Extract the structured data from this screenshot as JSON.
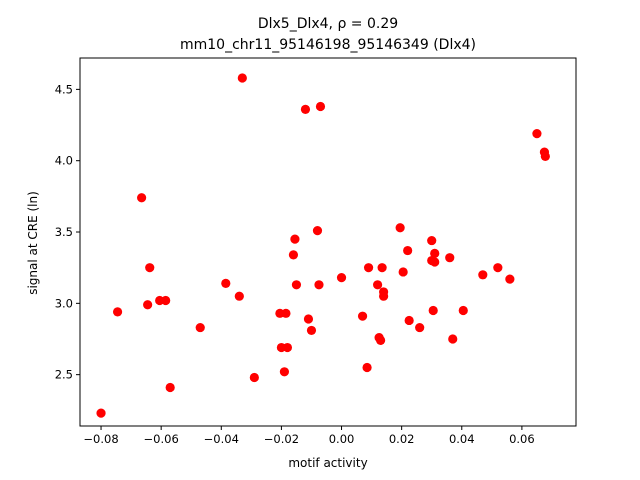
{
  "chart_data": {
    "type": "scatter",
    "title_line1": "Dlx5_Dlx4, ρ = 0.29",
    "title_line2": "mm10_chr11_95146198_95146349 (Dlx4)",
    "xlabel": "motif activity",
    "ylabel": "signal at CRE (ln)",
    "xlim": [
      -0.087,
      0.078
    ],
    "ylim": [
      2.14,
      4.72
    ],
    "xticks": [
      -0.08,
      -0.06,
      -0.04,
      -0.02,
      0.0,
      0.02,
      0.04,
      0.06
    ],
    "xtick_labels": [
      "−0.08",
      "−0.06",
      "−0.04",
      "−0.02",
      "0.00",
      "0.02",
      "0.04",
      "0.06"
    ],
    "yticks": [
      2.5,
      3.0,
      3.5,
      4.0,
      4.5
    ],
    "ytick_labels": [
      "2.5",
      "3.0",
      "3.5",
      "4.0",
      "4.5"
    ],
    "grid": false,
    "marker_color": "#ff0000",
    "points": [
      {
        "x": -0.08,
        "y": 2.23
      },
      {
        "x": -0.0745,
        "y": 2.94
      },
      {
        "x": -0.0665,
        "y": 3.74
      },
      {
        "x": -0.0645,
        "y": 2.99
      },
      {
        "x": -0.0638,
        "y": 3.25
      },
      {
        "x": -0.0605,
        "y": 3.02
      },
      {
        "x": -0.0585,
        "y": 3.02
      },
      {
        "x": -0.057,
        "y": 2.41
      },
      {
        "x": -0.047,
        "y": 2.83
      },
      {
        "x": -0.0385,
        "y": 3.14
      },
      {
        "x": -0.034,
        "y": 3.05
      },
      {
        "x": -0.033,
        "y": 4.58
      },
      {
        "x": -0.029,
        "y": 2.48
      },
      {
        "x": -0.0205,
        "y": 2.93
      },
      {
        "x": -0.02,
        "y": 2.69
      },
      {
        "x": -0.019,
        "y": 2.52
      },
      {
        "x": -0.0185,
        "y": 2.93
      },
      {
        "x": -0.018,
        "y": 2.69
      },
      {
        "x": -0.016,
        "y": 3.34
      },
      {
        "x": -0.0155,
        "y": 3.45
      },
      {
        "x": -0.015,
        "y": 3.13
      },
      {
        "x": -0.012,
        "y": 4.36
      },
      {
        "x": -0.011,
        "y": 2.89
      },
      {
        "x": -0.01,
        "y": 2.81
      },
      {
        "x": -0.008,
        "y": 3.51
      },
      {
        "x": -0.0075,
        "y": 3.13
      },
      {
        "x": -0.007,
        "y": 4.38
      },
      {
        "x": 0.0,
        "y": 3.18
      },
      {
        "x": 0.007,
        "y": 2.91
      },
      {
        "x": 0.0085,
        "y": 2.55
      },
      {
        "x": 0.009,
        "y": 3.25
      },
      {
        "x": 0.012,
        "y": 3.13
      },
      {
        "x": 0.0125,
        "y": 2.76
      },
      {
        "x": 0.013,
        "y": 2.74
      },
      {
        "x": 0.0135,
        "y": 3.25
      },
      {
        "x": 0.014,
        "y": 3.05
      },
      {
        "x": 0.014,
        "y": 3.08
      },
      {
        "x": 0.0195,
        "y": 3.53
      },
      {
        "x": 0.0205,
        "y": 3.22
      },
      {
        "x": 0.022,
        "y": 3.37
      },
      {
        "x": 0.0225,
        "y": 2.88
      },
      {
        "x": 0.026,
        "y": 2.83
      },
      {
        "x": 0.03,
        "y": 3.44
      },
      {
        "x": 0.03,
        "y": 3.3
      },
      {
        "x": 0.0305,
        "y": 2.95
      },
      {
        "x": 0.031,
        "y": 3.35
      },
      {
        "x": 0.031,
        "y": 3.29
      },
      {
        "x": 0.036,
        "y": 3.32
      },
      {
        "x": 0.037,
        "y": 2.75
      },
      {
        "x": 0.0405,
        "y": 2.95
      },
      {
        "x": 0.047,
        "y": 3.2
      },
      {
        "x": 0.052,
        "y": 3.25
      },
      {
        "x": 0.056,
        "y": 3.17
      },
      {
        "x": 0.065,
        "y": 4.19
      },
      {
        "x": 0.0675,
        "y": 4.06
      },
      {
        "x": 0.0678,
        "y": 4.03
      }
    ]
  }
}
